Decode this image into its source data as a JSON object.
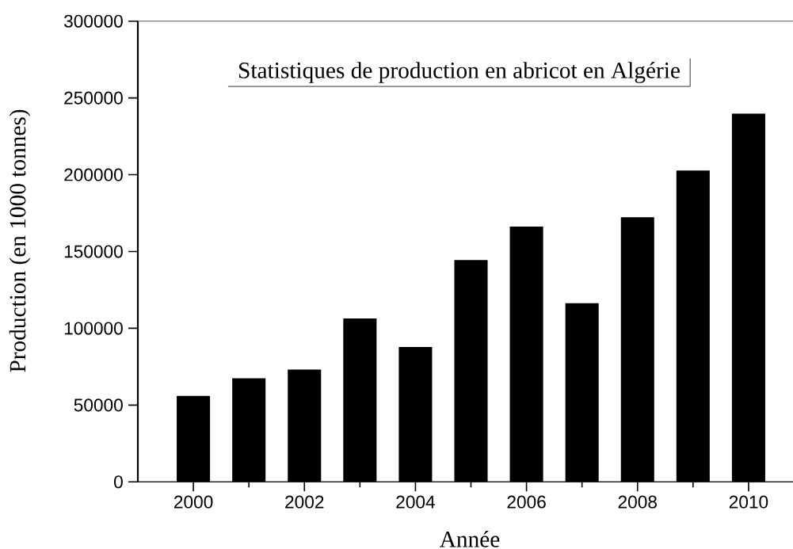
{
  "chart_data": {
    "type": "bar",
    "title": "Statistiques de production en abricot en Algérie",
    "xlabel": "Année",
    "ylabel": "Production (en 1000 tonnes)",
    "x": [
      2000,
      2001,
      2002,
      2003,
      2004,
      2005,
      2006,
      2007,
      2008,
      2009,
      2010
    ],
    "values": [
      56000,
      67400,
      73200,
      106400,
      87800,
      144400,
      166200,
      116400,
      172300,
      202700,
      239900
    ],
    "color": "#000000",
    "xlim": [
      1999,
      2010.8
    ],
    "ylim": [
      0,
      300000
    ],
    "xticks": [
      2000,
      {
        "value": 2001,
        "label": null
      },
      2002,
      {
        "value": 2003,
        "label": null
      },
      2004,
      {
        "value": 2005,
        "label": null
      },
      2006,
      {
        "value": 2007,
        "label": null
      },
      2008,
      {
        "value": 2009,
        "label": null
      },
      2010
    ],
    "yticks": [
      0,
      50000,
      100000,
      150000,
      200000,
      250000,
      300000
    ]
  }
}
